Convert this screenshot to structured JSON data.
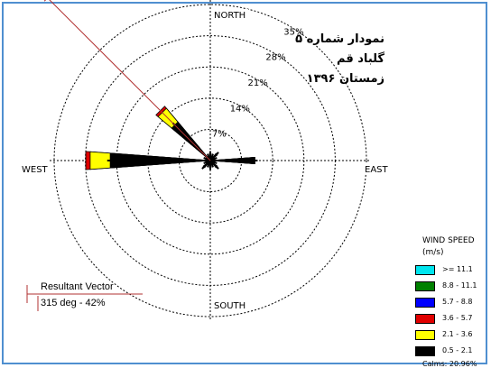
{
  "chart_data": {
    "type": "windrose",
    "title_lines": [
      "نمودار شماره ۵",
      "گلباد قم",
      "زمستان ۱۳۹۶"
    ],
    "directions": [
      "NORTH",
      "EAST",
      "SOUTH",
      "WEST"
    ],
    "ring_labels": [
      "7%",
      "14%",
      "21%",
      "28%",
      "35%"
    ],
    "ring_values": [
      7,
      14,
      21,
      28,
      35
    ],
    "rmax": 35,
    "legend_title": "WIND SPEED",
    "legend_units": "(m/s)",
    "bins": [
      {
        "label": ">= 11.1",
        "color": "#00e5ee"
      },
      {
        "label": "8.8 - 11.1",
        "color": "#008000"
      },
      {
        "label": "5.7 - 8.8",
        "color": "#0000ff"
      },
      {
        "label": "3.6 - 5.7",
        "color": "#e00000"
      },
      {
        "label": "2.1 - 3.6",
        "color": "#ffff00"
      },
      {
        "label": "0.5 - 2.1",
        "color": "#000000"
      }
    ],
    "calms": "Calms: 20.96%",
    "petals": [
      {
        "dir": 0,
        "cum": [
          1.5,
          1.5,
          1.5,
          1.5,
          1.5,
          1.5
        ]
      },
      {
        "dir": 22.5,
        "cum": [
          1.0,
          1.0,
          1.0,
          1.0,
          1.0,
          1.0
        ]
      },
      {
        "dir": 45,
        "cum": [
          2.0,
          2.0,
          2.0,
          2.0,
          2.0,
          2.0
        ]
      },
      {
        "dir": 67.5,
        "cum": [
          1.0,
          1.0,
          1.0,
          1.0,
          1.0,
          1.0
        ]
      },
      {
        "dir": 90,
        "cum": [
          10.0,
          10.0,
          10.0,
          10.0,
          10.0,
          10.0
        ]
      },
      {
        "dir": 112.5,
        "cum": [
          1.0,
          1.0,
          1.0,
          1.0,
          1.0,
          1.0
        ]
      },
      {
        "dir": 135,
        "cum": [
          2.0,
          2.0,
          2.0,
          2.0,
          2.0,
          2.0
        ]
      },
      {
        "dir": 157.5,
        "cum": [
          1.0,
          1.0,
          1.0,
          1.0,
          1.0,
          1.0
        ]
      },
      {
        "dir": 180,
        "cum": [
          1.5,
          1.5,
          1.5,
          1.5,
          1.5,
          1.5
        ]
      },
      {
        "dir": 202.5,
        "cum": [
          1.0,
          1.0,
          1.0,
          1.0,
          1.0,
          1.0
        ]
      },
      {
        "dir": 225,
        "cum": [
          2.0,
          2.0,
          2.0,
          2.0,
          2.0,
          2.0
        ]
      },
      {
        "dir": 247.5,
        "cum": [
          1.0,
          1.0,
          1.0,
          1.0,
          1.0,
          1.0
        ]
      },
      {
        "dir": 270,
        "cum": [
          22.5,
          22.5,
          22.5,
          24.7,
          27.0,
          28.0
        ]
      },
      {
        "dir": 292.5,
        "cum": [
          1.0,
          1.0,
          1.0,
          1.0,
          1.0,
          1.0
        ]
      },
      {
        "dir": 315,
        "cum": [
          11.3,
          11.3,
          11.3,
          14.2,
          15.3,
          15.9
        ]
      },
      {
        "dir": 337.5,
        "cum": [
          1.0,
          1.0,
          1.0,
          1.0,
          1.0,
          1.0
        ]
      }
    ],
    "resultant_vector": {
      "label": "Resultant Vector",
      "value": "315 deg - 42%",
      "direction_deg": 315,
      "percent": 42
    }
  }
}
